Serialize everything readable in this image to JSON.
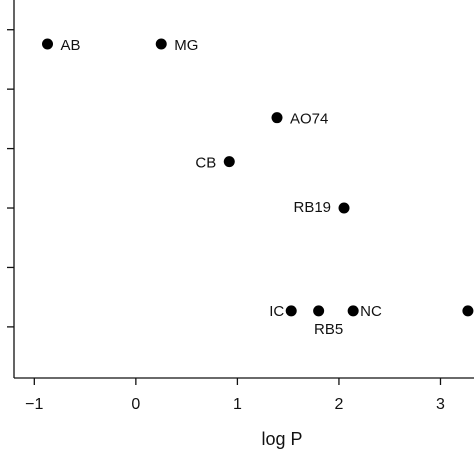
{
  "chart_data": {
    "type": "scatter",
    "x_label": "log P",
    "series": [
      {
        "color": "#000000",
        "x": [
          -0.87,
          0.25,
          1.39,
          0.92,
          2.05,
          1.53,
          1.8,
          2.14,
          3.27
        ],
        "values": [
          5.76,
          5.76,
          4.52,
          3.78,
          3.0,
          1.27,
          1.27,
          1.27,
          1.27
        ],
        "point_labels": [
          "AB",
          "MG",
          "AO74",
          "CB",
          "RB19",
          "IC",
          "RB5",
          "NC",
          null
        ]
      }
    ],
    "xlim": [
      -1.2,
      3.33
    ],
    "xticks": [
      {
        "value": -1,
        "label": "−1"
      },
      0,
      1,
      2,
      3
    ],
    "ylim": [
      0.14,
      6.5
    ],
    "yticks": [
      1,
      2,
      3,
      4,
      5,
      6
    ]
  }
}
